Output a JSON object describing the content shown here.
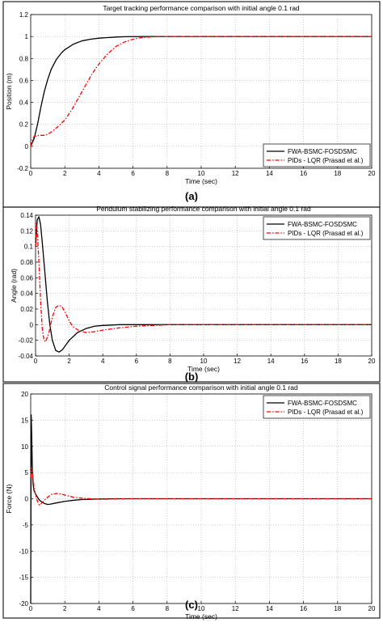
{
  "caption_fragment": "",
  "chart_data": [
    {
      "type": "line",
      "panel_label": "(a)",
      "title": "Target tracking performance comparison with initial angle 0.1 rad",
      "xlabel": "Time (sec)",
      "ylabel": "Position (m)",
      "xlim": [
        0,
        20
      ],
      "ylim": [
        -0.2,
        1.2
      ],
      "xticks": [
        0,
        2,
        4,
        6,
        8,
        10,
        12,
        14,
        16,
        18,
        20
      ],
      "yticks": [
        -0.2,
        0,
        0.2,
        0.4,
        0.6,
        0.8,
        1,
        1.2
      ],
      "ytick_labels": [
        "-0.2",
        "0",
        "0.2",
        "0.4",
        "0.6",
        "0.8",
        "1",
        "1.2"
      ],
      "grid": true,
      "legend_position": "bottom-right",
      "series": [
        {
          "name": "FWA-BSMC-FOSDSMC",
          "color": "#000000",
          "style": "solid",
          "x": [
            0,
            0.2,
            0.4,
            0.6,
            0.8,
            1.0,
            1.2,
            1.5,
            1.8,
            2.0,
            2.5,
            3.0,
            3.5,
            4.0,
            4.5,
            5.0,
            5.5,
            6.0,
            7.0,
            8.0,
            10,
            12,
            14,
            16,
            18,
            20
          ],
          "y": [
            0,
            0.07,
            0.2,
            0.36,
            0.5,
            0.61,
            0.7,
            0.79,
            0.85,
            0.88,
            0.93,
            0.96,
            0.975,
            0.985,
            0.99,
            0.995,
            0.998,
            0.999,
            1,
            1,
            1,
            1,
            1,
            1,
            1,
            1
          ]
        },
        {
          "name": "PIDs - LQR (Prasad et al.)",
          "color": "#ff0000",
          "style": "dash-dot",
          "x": [
            0,
            0.1,
            0.2,
            0.5,
            0.8,
            1.0,
            1.3,
            1.6,
            2.0,
            2.4,
            2.8,
            3.2,
            3.6,
            4.0,
            4.5,
            5.0,
            5.5,
            6.0,
            6.5,
            7.0,
            7.5,
            8.0,
            10,
            12,
            14,
            16,
            18,
            20
          ],
          "y": [
            0,
            0.06,
            0.09,
            0.1,
            0.1,
            0.11,
            0.14,
            0.18,
            0.24,
            0.33,
            0.44,
            0.55,
            0.66,
            0.75,
            0.84,
            0.91,
            0.95,
            0.975,
            0.99,
            0.996,
            0.999,
            1,
            1,
            1,
            1,
            1,
            1,
            1
          ]
        }
      ]
    },
    {
      "type": "line",
      "panel_label": "(b)",
      "title": "Pendulum stabilizing performance comparison with initial angle 0.1 rad",
      "xlabel": "Time (sec)",
      "ylabel": "Angle (rad)",
      "xlim": [
        0,
        20
      ],
      "ylim": [
        -0.04,
        0.14
      ],
      "xticks": [
        0,
        2,
        4,
        6,
        8,
        10,
        12,
        14,
        16,
        18,
        20
      ],
      "yticks": [
        -0.04,
        -0.02,
        0,
        0.02,
        0.04,
        0.06,
        0.08,
        0.1,
        0.12,
        0.14
      ],
      "ytick_labels": [
        "-0.04",
        "-0.02",
        "0",
        "0.02",
        "0.04",
        "0.06",
        "0.08",
        "0.1",
        "0.12",
        "0.14"
      ],
      "grid": true,
      "legend_position": "top-right",
      "series": [
        {
          "name": "FWA-BSMC-FOSDSMC",
          "color": "#000000",
          "style": "solid",
          "x": [
            0,
            0.1,
            0.2,
            0.3,
            0.4,
            0.55,
            0.7,
            0.85,
            1.0,
            1.2,
            1.4,
            1.6,
            1.8,
            2.0,
            2.5,
            3.0,
            3.5,
            4.0,
            5.0,
            6.0,
            7.0,
            8.0,
            10,
            12,
            14,
            16,
            18,
            20
          ],
          "y": [
            0.1,
            0.134,
            0.138,
            0.128,
            0.105,
            0.068,
            0.03,
            0.0,
            -0.02,
            -0.033,
            -0.035,
            -0.032,
            -0.026,
            -0.02,
            -0.01,
            -0.005,
            -0.002,
            -0.001,
            0,
            0,
            0,
            0,
            0,
            0,
            0,
            0,
            0,
            0
          ]
        },
        {
          "name": "PIDs - LQR (Prasad et al.)",
          "color": "#ff0000",
          "style": "dash-dot",
          "x": [
            0,
            0.05,
            0.1,
            0.2,
            0.3,
            0.4,
            0.5,
            0.6,
            0.8,
            1.0,
            1.2,
            1.4,
            1.6,
            1.8,
            2.0,
            2.2,
            2.6,
            3.0,
            3.5,
            4.0,
            5.0,
            6.0,
            7.0,
            8.0,
            10,
            12,
            14,
            16,
            18,
            20
          ],
          "y": [
            0.1,
            0.13,
            0.12,
            0.08,
            0.03,
            -0.005,
            -0.02,
            -0.022,
            -0.01,
            0.01,
            0.022,
            0.025,
            0.022,
            0.014,
            0.005,
            -0.002,
            -0.008,
            -0.01,
            -0.009,
            -0.007,
            -0.004,
            -0.002,
            -0.001,
            0,
            0,
            0,
            0,
            0,
            0,
            0
          ]
        }
      ]
    },
    {
      "type": "line",
      "panel_label": "(c)",
      "title": "Control signal performance comparison with initial angle 0.1 rad",
      "xlabel": "Time (sec)",
      "ylabel": "Force (N)",
      "xlim": [
        0,
        20
      ],
      "ylim": [
        -20,
        20
      ],
      "xticks": [
        0,
        2,
        4,
        6,
        8,
        10,
        12,
        14,
        16,
        18,
        20
      ],
      "yticks": [
        -20,
        -15,
        -10,
        -5,
        0,
        5,
        10,
        15,
        20
      ],
      "ytick_labels": [
        "-20",
        "-15",
        "-10",
        "-5",
        "0",
        "5",
        "10",
        "15",
        "20"
      ],
      "grid": true,
      "legend_position": "top-right",
      "series": [
        {
          "name": "FWA-BSMC-FOSDSMC",
          "color": "#000000",
          "style": "solid",
          "x": [
            0,
            0.03,
            0.06,
            0.1,
            0.15,
            0.2,
            0.3,
            0.4,
            0.5,
            0.6,
            0.8,
            1.0,
            1.2,
            1.5,
            2.0,
            2.5,
            3.0,
            4.0,
            5.0,
            6.0,
            8.0,
            10,
            12,
            14,
            16,
            18,
            20
          ],
          "y": [
            -20,
            16,
            12,
            5,
            2.5,
            1.5,
            0.8,
            0.3,
            -0.2,
            -0.5,
            -0.9,
            -1.1,
            -1.0,
            -0.8,
            -0.5,
            -0.3,
            -0.15,
            -0.05,
            0,
            0,
            0,
            0,
            0,
            0,
            0,
            0,
            0
          ]
        },
        {
          "name": "PIDs - LQR (Prasad et al.)",
          "color": "#ff0000",
          "style": "dash-dot",
          "x": [
            0,
            0.05,
            0.1,
            0.2,
            0.3,
            0.4,
            0.5,
            0.6,
            0.8,
            1.0,
            1.2,
            1.5,
            1.8,
            2.0,
            2.5,
            3.0,
            4.0,
            5.0,
            6.0,
            8.0,
            10,
            12,
            14,
            16,
            18,
            20
          ],
          "y": [
            4,
            6,
            5,
            2,
            0.5,
            -0.5,
            -1.2,
            -1.0,
            -0.3,
            0.3,
            0.8,
            1.0,
            0.9,
            0.7,
            0.3,
            0.1,
            -0.1,
            -0.05,
            0,
            0,
            0,
            0,
            0,
            0,
            0,
            0
          ]
        }
      ]
    }
  ]
}
